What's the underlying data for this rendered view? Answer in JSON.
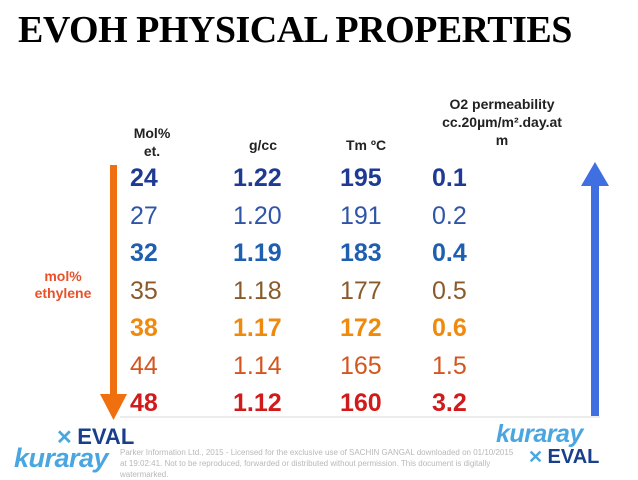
{
  "title": "EVOH PHYSICAL PROPERTIES",
  "headers": {
    "mol": "Mol%\net.",
    "density": "g/cc",
    "tm": "Tm ºC",
    "o2_line1": "O2 permeability",
    "o2_line2": "cc.20µm/m².day.at",
    "o2_line3": "m"
  },
  "side_label": "mol%\nethylene",
  "rows": [
    {
      "mol": "24",
      "density": "1.22",
      "tm": "195",
      "o2": "0.1",
      "color": "#1f3a93",
      "bold": true
    },
    {
      "mol": "27",
      "density": "1.20",
      "tm": "191",
      "o2": "0.2",
      "color": "#2f55a8",
      "bold": false
    },
    {
      "mol": "32",
      "density": "1.19",
      "tm": "183",
      "o2": "0.4",
      "color": "#1f5fb0",
      "bold": true
    },
    {
      "mol": "35",
      "density": "1.18",
      "tm": "177",
      "o2": "0.5",
      "color": "#8a5a2b",
      "bold": false
    },
    {
      "mol": "38",
      "density": "1.17",
      "tm": "172",
      "o2": "0.6",
      "color": "#f08a0c",
      "bold": true
    },
    {
      "mol": "44",
      "density": "1.14",
      "tm": "165",
      "o2": "1.5",
      "color": "#d4561f",
      "bold": false
    },
    {
      "mol": "48",
      "density": "1.12",
      "tm": "160",
      "o2": "3.2",
      "color": "#d11a1a",
      "bold": true
    }
  ],
  "logos": {
    "eval": "EVAL",
    "kuraray": "kuraray"
  },
  "watermark": "Parker Information Ltd., 2015 - Licensed for the exclusive use of SACHIN GANGAL downloaded on 01/10/2015 at 19:02:41. Not to be reproduced, forwarded or distributed without permission. This document is digitally watermarked.",
  "colors": {
    "arrow_down": "#f07010",
    "arrow_up": "#3f6fe0",
    "title": "#000000"
  }
}
